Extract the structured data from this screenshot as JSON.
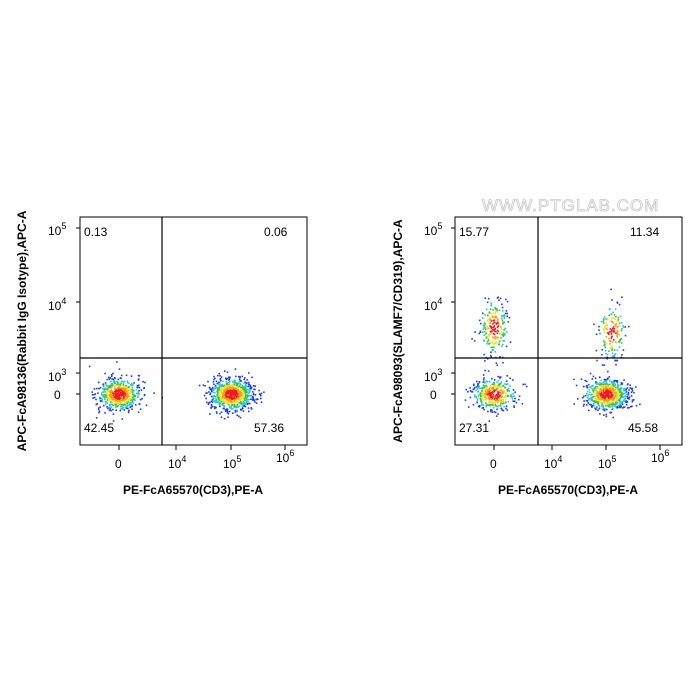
{
  "watermark": "WWW.PTGLAB.COM",
  "chart_data": [
    {
      "type": "scatter",
      "subtype": "flow-cytometry-density-dot-plot",
      "xlabel": "PE-FcA65570(CD3),PE-A",
      "ylabel": "APC-FcA98136(Rabbit IgG Isotype),APC-A",
      "xscale": "biexponential",
      "yscale": "biexponential",
      "xticks": [
        {
          "base": "0",
          "exp": ""
        },
        {
          "base": "10",
          "exp": "4"
        },
        {
          "base": "10",
          "exp": "5"
        },
        {
          "base": "10",
          "exp": "6"
        }
      ],
      "yticks": [
        {
          "base": "0",
          "exp": ""
        },
        {
          "base": "10",
          "exp": "3"
        },
        {
          "base": "10",
          "exp": "4"
        },
        {
          "base": "10",
          "exp": "5"
        }
      ],
      "quadrants": {
        "upper_left": "0.13",
        "upper_right": "0.06",
        "lower_left": "42.45",
        "lower_right": "57.36"
      },
      "populations": [
        {
          "x": 0,
          "y": 0,
          "share": 42.45
        },
        {
          "x": 120000,
          "y": 0,
          "share": 57.36
        }
      ],
      "color_scale": "density: blue-cyan-green-yellow-red"
    },
    {
      "type": "scatter",
      "subtype": "flow-cytometry-density-dot-plot",
      "xlabel": "PE-FcA65570(CD3),PE-A",
      "ylabel": "APC-FcA98093(SLAMF7/CD319),APC-A",
      "xscale": "biexponential",
      "yscale": "biexponential",
      "xticks": [
        {
          "base": "0",
          "exp": ""
        },
        {
          "base": "10",
          "exp": "4"
        },
        {
          "base": "10",
          "exp": "5"
        },
        {
          "base": "10",
          "exp": "6"
        }
      ],
      "yticks": [
        {
          "base": "0",
          "exp": ""
        },
        {
          "base": "10",
          "exp": "3"
        },
        {
          "base": "10",
          "exp": "4"
        },
        {
          "base": "10",
          "exp": "5"
        }
      ],
      "quadrants": {
        "upper_left": "15.77",
        "upper_right": "11.34",
        "lower_left": "27.31",
        "lower_right": "45.58"
      },
      "populations": [
        {
          "x": 0,
          "y": 0,
          "share": 27.31
        },
        {
          "x": 0,
          "y": 8000,
          "share": 15.77
        },
        {
          "x": 120000,
          "y": 0,
          "share": 45.58
        },
        {
          "x": 150000,
          "y": 7000,
          "share": 11.34
        }
      ],
      "color_scale": "density: blue-cyan-green-yellow-red"
    }
  ]
}
